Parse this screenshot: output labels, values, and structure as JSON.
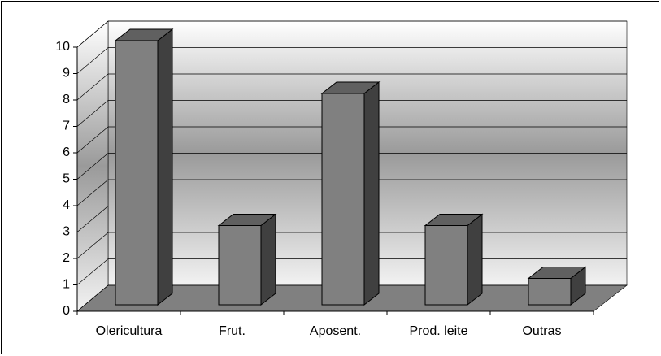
{
  "chart_data": {
    "type": "bar",
    "categories": [
      "Olericultura",
      "Frut.",
      "Aposent.",
      "Prod. leite",
      "Outras"
    ],
    "values": [
      10,
      3,
      8,
      3,
      1
    ],
    "color": "#808080",
    "ylim": [
      0,
      10
    ],
    "yticks": [
      0,
      1,
      2,
      3,
      4,
      5,
      6,
      7,
      8,
      9,
      10
    ],
    "grid": true
  }
}
